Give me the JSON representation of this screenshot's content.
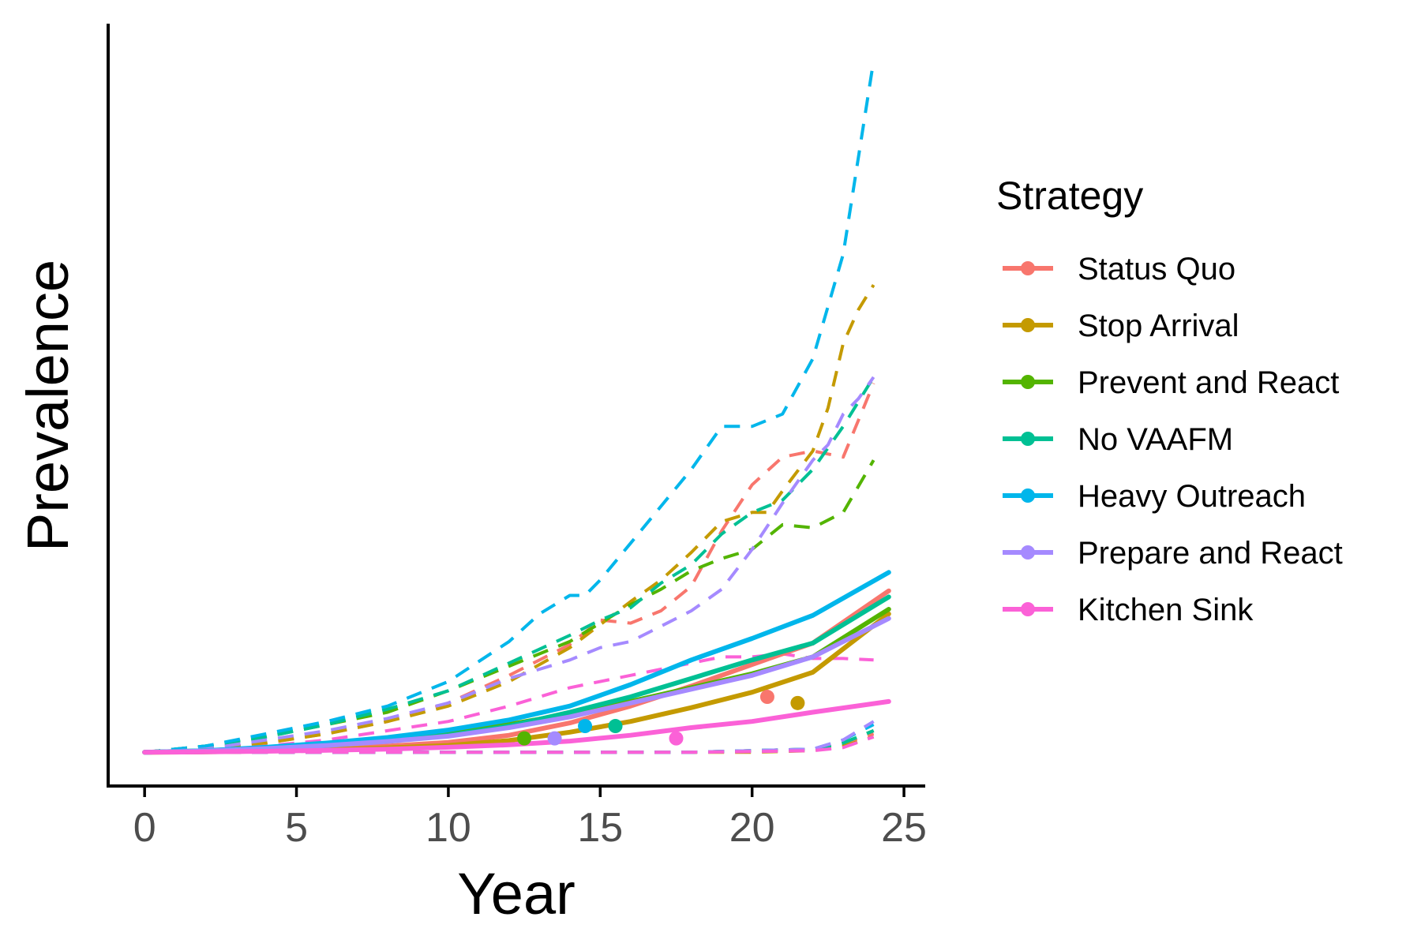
{
  "chart_data": {
    "type": "line",
    "xlabel": "Year",
    "ylabel": "Prevalence",
    "xlim": [
      -1.2,
      25.7
    ],
    "ylim": [
      -1.1,
      23.7
    ],
    "x_ticks": [
      0,
      5,
      10,
      15,
      20,
      25
    ],
    "x_tick_labels": [
      "0",
      "5",
      "10",
      "15",
      "20",
      "25"
    ],
    "y_ticks_shown": false,
    "grid": false,
    "legend": {
      "title": "Strategy",
      "position": "right",
      "entries": [
        "Status Quo",
        "Stop Arrival",
        "Prevent and React",
        "No VAAFM",
        "Heavy Outreach",
        "Prepare and React",
        "Kitchen Sink"
      ]
    },
    "line_styles": {
      "solid": "mean",
      "dashed": "upper and lower bounds"
    },
    "series": [
      {
        "name": "Status Quo",
        "color": "#F8766D",
        "mean": {
          "x": [
            0,
            2,
            4,
            6,
            8,
            10,
            12,
            14,
            16,
            18,
            20,
            22,
            24.5
          ],
          "y": [
            0,
            0.02,
            0.06,
            0.12,
            0.2,
            0.32,
            0.55,
            0.95,
            1.5,
            2.15,
            2.85,
            3.55,
            5.25
          ]
        },
        "upper": {
          "x": [
            0,
            2,
            4,
            6,
            8,
            10,
            12,
            14,
            15,
            16,
            17,
            18,
            19,
            20,
            21,
            21.5,
            22,
            22.5,
            23,
            23.5,
            24
          ],
          "y": [
            0,
            0.1,
            0.3,
            0.6,
            1.0,
            1.6,
            2.5,
            3.5,
            4.3,
            4.2,
            4.6,
            5.4,
            7.2,
            8.7,
            9.6,
            9.7,
            9.8,
            9.7,
            9.6,
            10.8,
            12.0
          ]
        },
        "lower": {
          "x": [
            0,
            4,
            8,
            12,
            14,
            16,
            18,
            20,
            22,
            23,
            24
          ],
          "y": [
            0,
            0,
            0,
            0,
            0,
            0,
            0,
            0.05,
            0.1,
            0.3,
            0.6
          ]
        },
        "marker": {
          "x": 20.5,
          "y": 1.8
        }
      },
      {
        "name": "Stop Arrival",
        "color": "#C49A00",
        "mean": {
          "x": [
            0,
            2,
            4,
            6,
            8,
            10,
            12,
            14,
            16,
            18,
            20,
            22,
            24.5
          ],
          "y": [
            0,
            0.01,
            0.04,
            0.08,
            0.14,
            0.22,
            0.38,
            0.65,
            1.0,
            1.45,
            1.95,
            2.6,
            4.5
          ]
        },
        "upper": {
          "x": [
            0,
            2,
            4,
            6,
            8,
            10,
            12,
            14,
            16,
            17,
            18,
            19,
            20,
            20.5,
            21,
            22,
            22.5,
            23,
            23.5,
            24
          ],
          "y": [
            0,
            0.1,
            0.3,
            0.6,
            1.0,
            1.5,
            2.3,
            3.4,
            4.9,
            5.6,
            6.5,
            7.5,
            7.8,
            7.8,
            8.5,
            9.8,
            11.2,
            13.3,
            14.4,
            15.2
          ]
        },
        "lower": {
          "x": [
            0,
            4,
            8,
            12,
            14,
            16,
            18,
            20,
            22,
            23,
            24
          ],
          "y": [
            0,
            0,
            0,
            0,
            0,
            0,
            0,
            0,
            0.05,
            0.2,
            0.5
          ]
        },
        "marker": {
          "x": 21.5,
          "y": 1.6
        }
      },
      {
        "name": "Prevent and React",
        "color": "#53B400",
        "mean": {
          "x": [
            0,
            2,
            4,
            6,
            8,
            10,
            12,
            14,
            16,
            18,
            20,
            22,
            24.5
          ],
          "y": [
            0,
            0.05,
            0.14,
            0.25,
            0.4,
            0.6,
            0.9,
            1.25,
            1.65,
            2.1,
            2.55,
            3.1,
            4.65
          ]
        },
        "upper": {
          "x": [
            0,
            2,
            4,
            6,
            8,
            10,
            12,
            14,
            15,
            16,
            17,
            18,
            19,
            20,
            21,
            22,
            23,
            24
          ],
          "y": [
            0,
            0.2,
            0.5,
            0.9,
            1.3,
            2.0,
            2.8,
            3.6,
            4.2,
            4.8,
            5.3,
            5.9,
            6.3,
            6.6,
            7.4,
            7.3,
            7.8,
            9.5
          ]
        },
        "lower": {
          "x": [
            0,
            4,
            8,
            12,
            14,
            16,
            18,
            20,
            22,
            23,
            24
          ],
          "y": [
            0,
            0,
            0,
            0,
            0,
            0,
            0,
            0.05,
            0.1,
            0.3,
            0.7
          ]
        },
        "marker": {
          "x": 12.5,
          "y": 0.45
        }
      },
      {
        "name": "No VAAFM",
        "color": "#00C094",
        "mean": {
          "x": [
            0,
            2,
            4,
            6,
            8,
            10,
            12,
            14,
            16,
            18,
            20,
            22,
            24.5
          ],
          "y": [
            0,
            0.04,
            0.12,
            0.22,
            0.36,
            0.55,
            0.85,
            1.3,
            1.8,
            2.4,
            3.0,
            3.55,
            5.05
          ]
        },
        "upper": {
          "x": [
            0,
            2,
            4,
            6,
            8,
            10,
            12,
            14,
            15,
            16,
            17,
            18,
            19,
            20,
            21,
            22,
            23,
            24
          ],
          "y": [
            0,
            0.2,
            0.5,
            0.9,
            1.4,
            2.0,
            2.9,
            3.8,
            4.3,
            4.7,
            5.5,
            6.1,
            7.1,
            7.8,
            8.2,
            9.2,
            10.6,
            12.2
          ]
        },
        "lower": {
          "x": [
            0,
            4,
            8,
            12,
            14,
            16,
            18,
            20,
            22,
            23,
            24
          ],
          "y": [
            0,
            0,
            0,
            0,
            0,
            0,
            0,
            0.05,
            0.1,
            0.3,
            0.7
          ]
        },
        "marker": {
          "x": 15.5,
          "y": 0.85
        }
      },
      {
        "name": "Heavy Outreach",
        "color": "#00B6EB",
        "mean": {
          "x": [
            0,
            2,
            4,
            6,
            8,
            10,
            12,
            14,
            16,
            18,
            20,
            22,
            24.5
          ],
          "y": [
            0,
            0.05,
            0.16,
            0.3,
            0.48,
            0.72,
            1.05,
            1.5,
            2.2,
            3.0,
            3.7,
            4.45,
            5.85
          ]
        },
        "upper": {
          "x": [
            0,
            2,
            4,
            6,
            8,
            10,
            12,
            13,
            14,
            14.5,
            15,
            16,
            17,
            18,
            19,
            20,
            21,
            22,
            23,
            24
          ],
          "y": [
            0,
            0.2,
            0.6,
            1.0,
            1.5,
            2.3,
            3.6,
            4.5,
            5.1,
            5.1,
            5.6,
            6.8,
            8.0,
            9.2,
            10.6,
            10.6,
            11.0,
            12.8,
            16.2,
            22.5
          ]
        },
        "lower": {
          "x": [
            0,
            4,
            8,
            12,
            14,
            16,
            18,
            20,
            22,
            23,
            24
          ],
          "y": [
            0,
            0,
            0,
            0,
            0,
            0,
            0,
            0.05,
            0.1,
            0.4,
            0.9
          ]
        },
        "marker": {
          "x": 14.5,
          "y": 0.85
        }
      },
      {
        "name": "Prepare and React",
        "color": "#A58AFF",
        "mean": {
          "x": [
            0,
            2,
            4,
            6,
            8,
            10,
            12,
            14,
            16,
            18,
            20,
            22,
            24.5
          ],
          "y": [
            0,
            0.04,
            0.12,
            0.22,
            0.35,
            0.52,
            0.8,
            1.15,
            1.6,
            2.05,
            2.5,
            3.1,
            4.35
          ]
        },
        "upper": {
          "x": [
            0,
            2,
            4,
            6,
            8,
            10,
            12,
            14,
            15,
            16,
            17,
            18,
            19,
            20,
            21,
            22,
            22.5,
            23,
            23.5,
            24
          ],
          "y": [
            0,
            0.1,
            0.4,
            0.7,
            1.1,
            1.6,
            2.4,
            3.0,
            3.4,
            3.6,
            4.1,
            4.6,
            5.3,
            6.6,
            8.1,
            9.5,
            10.0,
            11.0,
            11.5,
            12.2
          ]
        },
        "lower": {
          "x": [
            0,
            4,
            8,
            12,
            14,
            16,
            18,
            20,
            22,
            23,
            24
          ],
          "y": [
            0,
            0,
            0,
            0,
            0,
            0,
            0,
            0.05,
            0.1,
            0.4,
            1.0
          ]
        },
        "marker": {
          "x": 13.5,
          "y": 0.45
        }
      },
      {
        "name": "Kitchen Sink",
        "color": "#FB61D7",
        "mean": {
          "x": [
            0,
            2,
            4,
            6,
            8,
            10,
            12,
            14,
            16,
            18,
            20,
            22,
            24.5
          ],
          "y": [
            0,
            0.01,
            0.03,
            0.06,
            0.1,
            0.16,
            0.24,
            0.36,
            0.55,
            0.8,
            1.0,
            1.3,
            1.65
          ]
        },
        "upper": {
          "x": [
            0,
            2,
            4,
            6,
            8,
            10,
            12,
            14,
            16,
            18,
            19,
            20,
            21,
            22,
            23,
            24
          ],
          "y": [
            0,
            0.05,
            0.2,
            0.4,
            0.7,
            1.0,
            1.5,
            2.1,
            2.5,
            2.9,
            3.1,
            3.1,
            3.2,
            3.05,
            3.05,
            3.0
          ]
        },
        "lower": {
          "x": [
            0,
            4,
            8,
            12,
            14,
            16,
            18,
            20,
            22,
            23,
            24
          ],
          "y": [
            0,
            0,
            0,
            0,
            0,
            0,
            0,
            0.02,
            0.05,
            0.15,
            0.5
          ]
        },
        "marker": {
          "x": 17.5,
          "y": 0.45
        }
      }
    ]
  }
}
